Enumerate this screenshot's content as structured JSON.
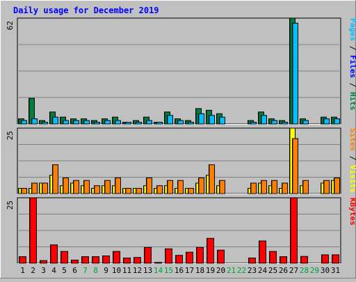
{
  "chart_data": {
    "type": "bar",
    "title": "Daily usage for December 2019",
    "categories": [
      "1",
      "2",
      "3",
      "4",
      "5",
      "6",
      "7",
      "8",
      "9",
      "10",
      "11",
      "12",
      "13",
      "14",
      "15",
      "16",
      "17",
      "18",
      "19",
      "20",
      "21",
      "22",
      "23",
      "24",
      "25",
      "26",
      "27",
      "28",
      "29",
      "30",
      "31"
    ],
    "weekend_days": [
      "7",
      "8",
      "14",
      "15",
      "21",
      "22",
      "28",
      "29"
    ],
    "panels": {
      "pages_files_hits": {
        "axis_max_label": "62",
        "ylim": [
          0,
          62
        ],
        "series": [
          {
            "name": "Hits",
            "color": "#008040",
            "values": [
              3,
              15,
              2,
              7,
              4,
              3,
              3,
              2,
              3,
              4,
              1,
              2,
              4,
              1,
              7,
              3,
              2,
              9,
              8,
              6,
              0,
              0,
              2,
              7,
              3,
              2,
              62,
              3,
              0,
              4,
              4
            ]
          },
          {
            "name": "Files",
            "color": "#00c0ff",
            "values": [
              2,
              3,
              1,
              4,
              2,
              2,
              2,
              1,
              2,
              2,
              1,
              1,
              2,
              1,
              5,
              2,
              1,
              6,
              5,
              4,
              0,
              0,
              1,
              5,
              2,
              1,
              59,
              2,
              0,
              3,
              3
            ]
          }
        ],
        "legend": [
          "Pages",
          "Files",
          "Hits"
        ],
        "legend_colors": [
          "#00c0ff",
          "#0000ff",
          "#008040"
        ]
      },
      "sites_visits": {
        "axis_max_label": "25",
        "ylim": [
          0,
          25
        ],
        "series": [
          {
            "name": "Visits",
            "color": "#ffff00",
            "values": [
              2,
              2,
              4,
              7,
              3,
              4,
              3,
              2,
              3,
              3,
              2,
              2,
              3,
              2,
              3,
              2,
              2,
              4,
              7,
              3,
              0,
              0,
              2,
              4,
              3,
              2,
              25,
              3,
              0,
              4,
              5
            ]
          },
          {
            "name": "Sites",
            "color": "#ff8000",
            "values": [
              2,
              4,
              4,
              11,
              6,
              5,
              5,
              3,
              5,
              6,
              2,
              2,
              6,
              3,
              5,
              5,
              2,
              6,
              11,
              5,
              0,
              0,
              4,
              5,
              5,
              4,
              21,
              5,
              0,
              5,
              6
            ]
          }
        ],
        "legend": [
          "Sites",
          "Visits"
        ],
        "legend_colors": [
          "#ff8000",
          "#ffff00"
        ]
      },
      "kbytes": {
        "axis_max_label": "25",
        "ylim": [
          0,
          25
        ],
        "series": [
          {
            "name": "KBytes",
            "color": "#ff0000",
            "values": [
              2.5,
              25,
              1,
              7,
              4.5,
              1.2,
              2.5,
              2.5,
              2.8,
              4.5,
              2,
              2.2,
              6,
              0.3,
              5.5,
              3,
              4.2,
              6,
              9.5,
              5,
              0,
              0,
              2,
              8.5,
              4.5,
              2.5,
              25,
              2.6,
              0,
              3.2,
              3.2
            ]
          }
        ],
        "legend": [
          "KBytes"
        ],
        "legend_colors": [
          "#ff0000"
        ]
      }
    }
  }
}
